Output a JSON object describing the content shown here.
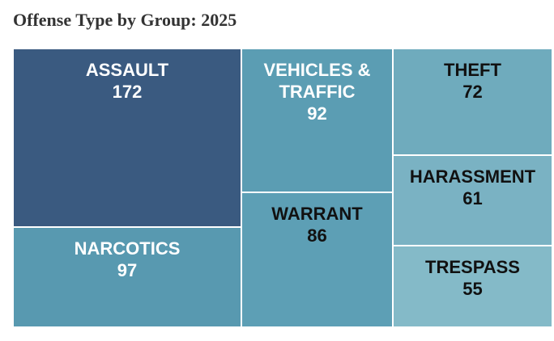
{
  "title": "Offense Type by Group: 2025",
  "chart_data": {
    "type": "treemap",
    "title": "Offense Type by Group: 2025",
    "items": [
      {
        "label": "ASSAULT",
        "value": 172,
        "color": "#3a5a80",
        "text_color": "#ffffff"
      },
      {
        "label": "NARCOTICS",
        "value": 97,
        "color": "#5899b0",
        "text_color": "#ffffff"
      },
      {
        "label": "VEHICLES &\nTRAFFIC",
        "value": 92,
        "color": "#5b9db3",
        "text_color": "#ffffff"
      },
      {
        "label": "WARRANT",
        "value": 86,
        "color": "#5d9fb5",
        "text_color": "#111111"
      },
      {
        "label": "THEFT",
        "value": 72,
        "color": "#6fabbd",
        "text_color": "#111111"
      },
      {
        "label": "HARASSMENT",
        "value": 61,
        "color": "#7ab2c3",
        "text_color": "#111111"
      },
      {
        "label": "TRESPASS",
        "value": 55,
        "color": "#84bac8",
        "text_color": "#111111"
      }
    ]
  }
}
